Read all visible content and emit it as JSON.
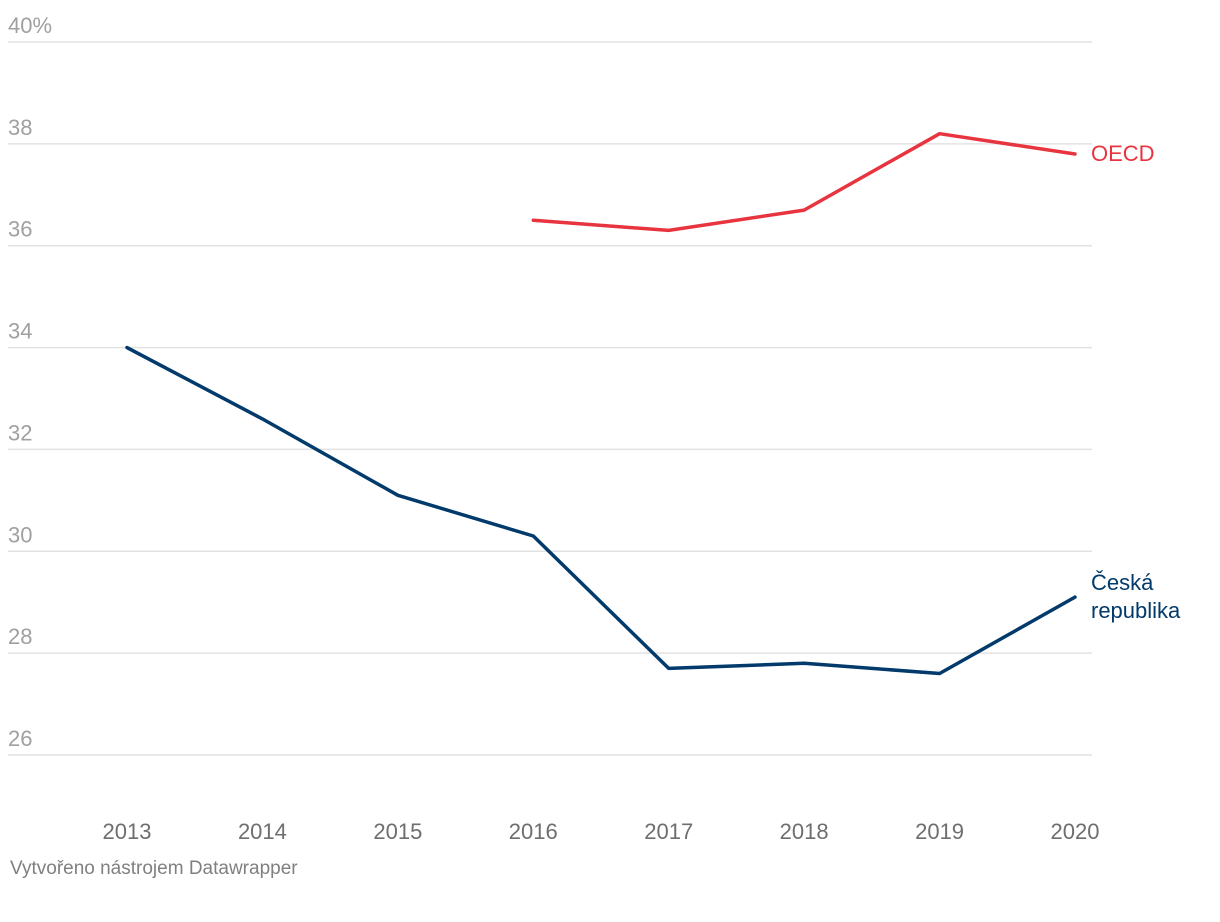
{
  "chart_data": {
    "type": "line",
    "x": [
      "2013",
      "2014",
      "2015",
      "2016",
      "2017",
      "2018",
      "2019",
      "2020"
    ],
    "ylim": [
      26,
      40
    ],
    "yticks": [
      {
        "value": 40,
        "label": "40%"
      },
      {
        "value": 38,
        "label": "38"
      },
      {
        "value": 36,
        "label": "36"
      },
      {
        "value": 34,
        "label": "34"
      },
      {
        "value": 32,
        "label": "32"
      },
      {
        "value": 30,
        "label": "30"
      },
      {
        "value": 28,
        "label": "28"
      },
      {
        "value": 26,
        "label": "26"
      }
    ],
    "grid": true,
    "series": [
      {
        "name": "OECD",
        "color": "#e8343f",
        "values": [
          null,
          null,
          null,
          36.5,
          36.3,
          36.7,
          38.2,
          37.8
        ]
      },
      {
        "name": "Česká republika",
        "label_lines": [
          "Česká",
          "republika"
        ],
        "color": "#013a6b",
        "values": [
          34.0,
          32.6,
          31.1,
          30.3,
          27.7,
          27.8,
          27.6,
          29.1
        ]
      }
    ]
  },
  "footer": {
    "credit": "Vytvořeno nástrojem Datawrapper"
  }
}
